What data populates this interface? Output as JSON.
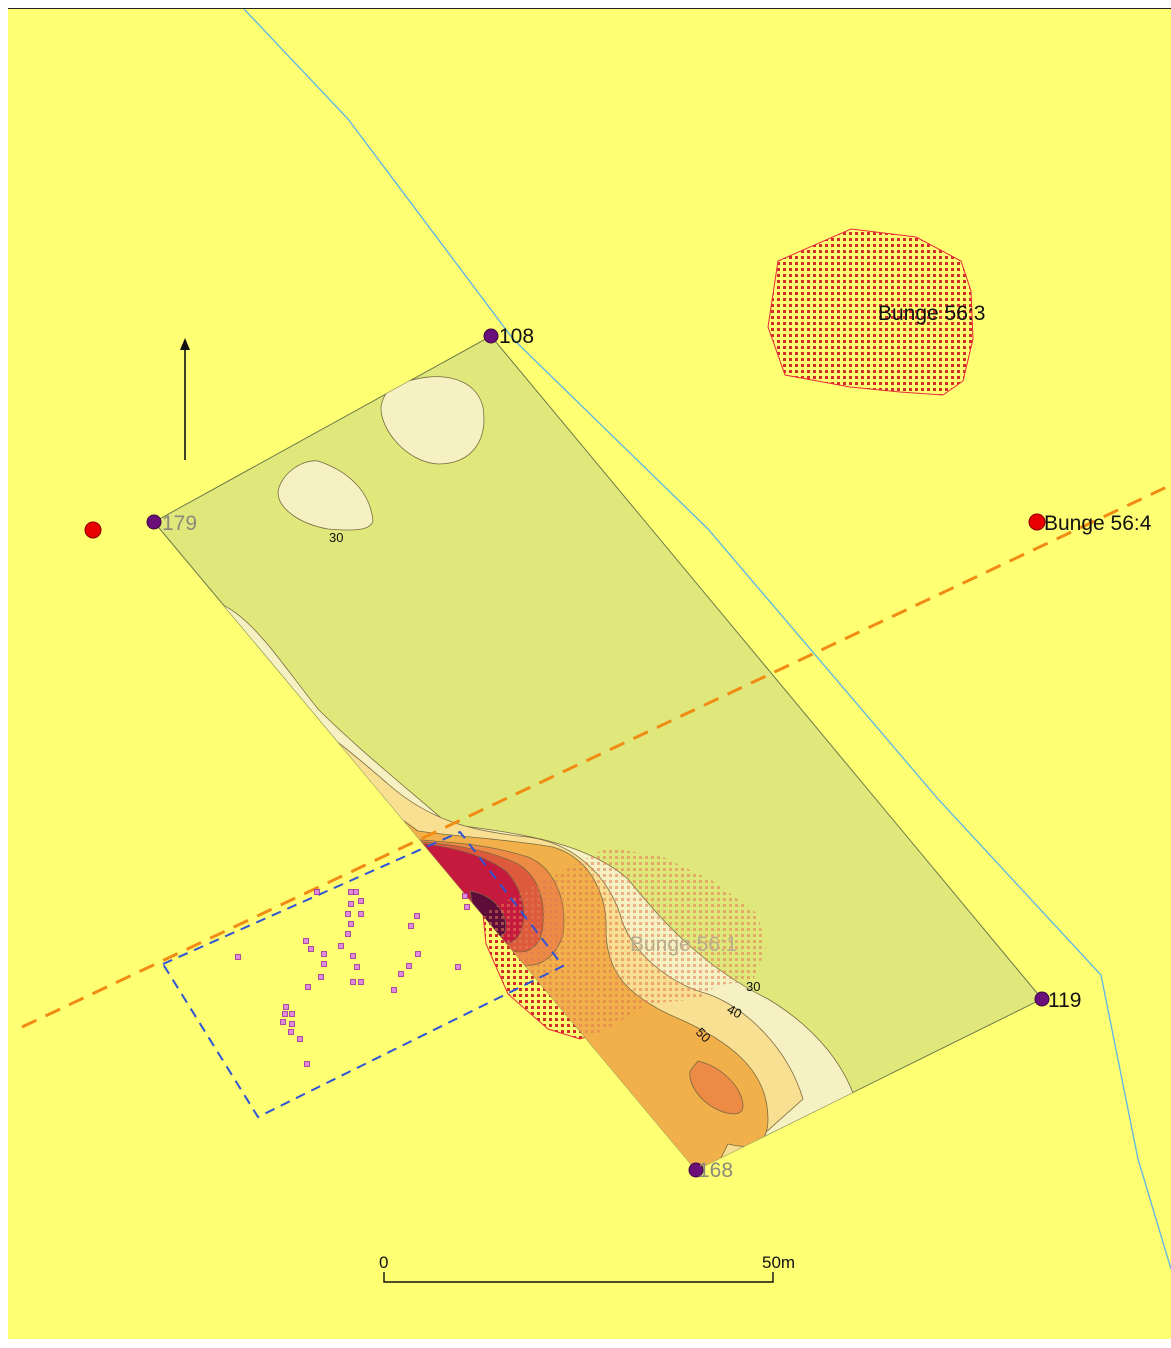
{
  "map": {
    "colors": {
      "background": "#ffff73",
      "survey_area": "#e0e87c",
      "contour_30": "#f6f1c2",
      "contour_40": "#f8df92",
      "contour_50": "#f2b04a",
      "contour_60": "#ec8a46",
      "contour_70": "#dd5a3c",
      "contour_80": "#c5193d",
      "contour_90": "#5e0d3a",
      "stream": "#5ab4e8",
      "dashed_line_orange": "#f08c14",
      "dashed_box_blue": "#2e55d6",
      "finds": "#d070d0",
      "site_outline": "#e8283c",
      "point_purple": "#6a0f7a",
      "point_red": "#e80000"
    },
    "survey_points": [
      {
        "id": "108"
      },
      {
        "id": "179"
      },
      {
        "id": "119"
      },
      {
        "id": "168"
      }
    ],
    "sites": [
      {
        "label": "Bunge 56:3"
      },
      {
        "label": "Bunge 56:4"
      },
      {
        "label": "Bunge 56:1"
      }
    ],
    "contour_labels": [
      "30",
      "30",
      "40",
      "50"
    ],
    "scale_bar": {
      "start_label": "0",
      "end_label": "50m"
    },
    "north_arrow": "north-arrow-icon"
  }
}
